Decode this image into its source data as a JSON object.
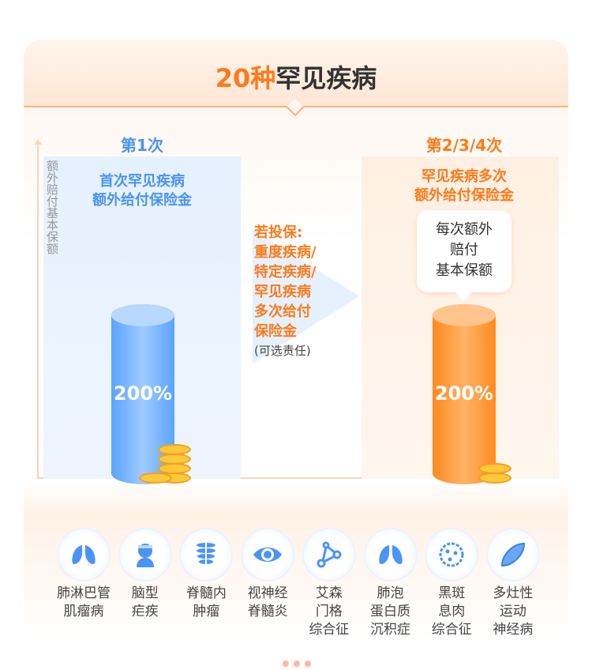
{
  "title": {
    "number": "20种",
    "text": "罕见疾病"
  },
  "y_axis_label": "额外赔付基本保额",
  "left": {
    "title": "第1次",
    "subtitle_1": "首次罕见疾病",
    "subtitle_2": "额外给付保险金",
    "percent": "200%"
  },
  "middle": {
    "lines": [
      "若投保:",
      "重度疾病/",
      "特定疾病/",
      "罕见疾病",
      "多次给付",
      "保险金"
    ],
    "optional": "(可选责任)"
  },
  "right": {
    "title": "第2/3/4次",
    "subtitle_1": "罕见疾病多次",
    "subtitle_2": "额外给付保险金",
    "bubble": [
      "每次额外",
      "赔付",
      "基本保额"
    ],
    "percent": "200%"
  },
  "diseases": [
    {
      "icon": "lungs-icon",
      "label": "肺淋巴管\n肌瘤病"
    },
    {
      "icon": "head-bandage-icon",
      "label": "脑型\n疟疾"
    },
    {
      "icon": "spine-icon",
      "label": "脊髓内\n肿瘤"
    },
    {
      "icon": "eye-icon",
      "label": "视神经\n脊髓炎"
    },
    {
      "icon": "molecule-icon",
      "label": "艾森\n门格\n综合征"
    },
    {
      "icon": "lungs-icon",
      "label": "肺泡\n蛋白质\n沉积症"
    },
    {
      "icon": "cell-icon",
      "label": "黑斑\n息肉\n综合征"
    },
    {
      "icon": "muscle-icon",
      "label": "多灶性\n运动\n神经病"
    }
  ],
  "colors": {
    "accent": "#ff7a1a",
    "blue": "#4a94f5"
  }
}
